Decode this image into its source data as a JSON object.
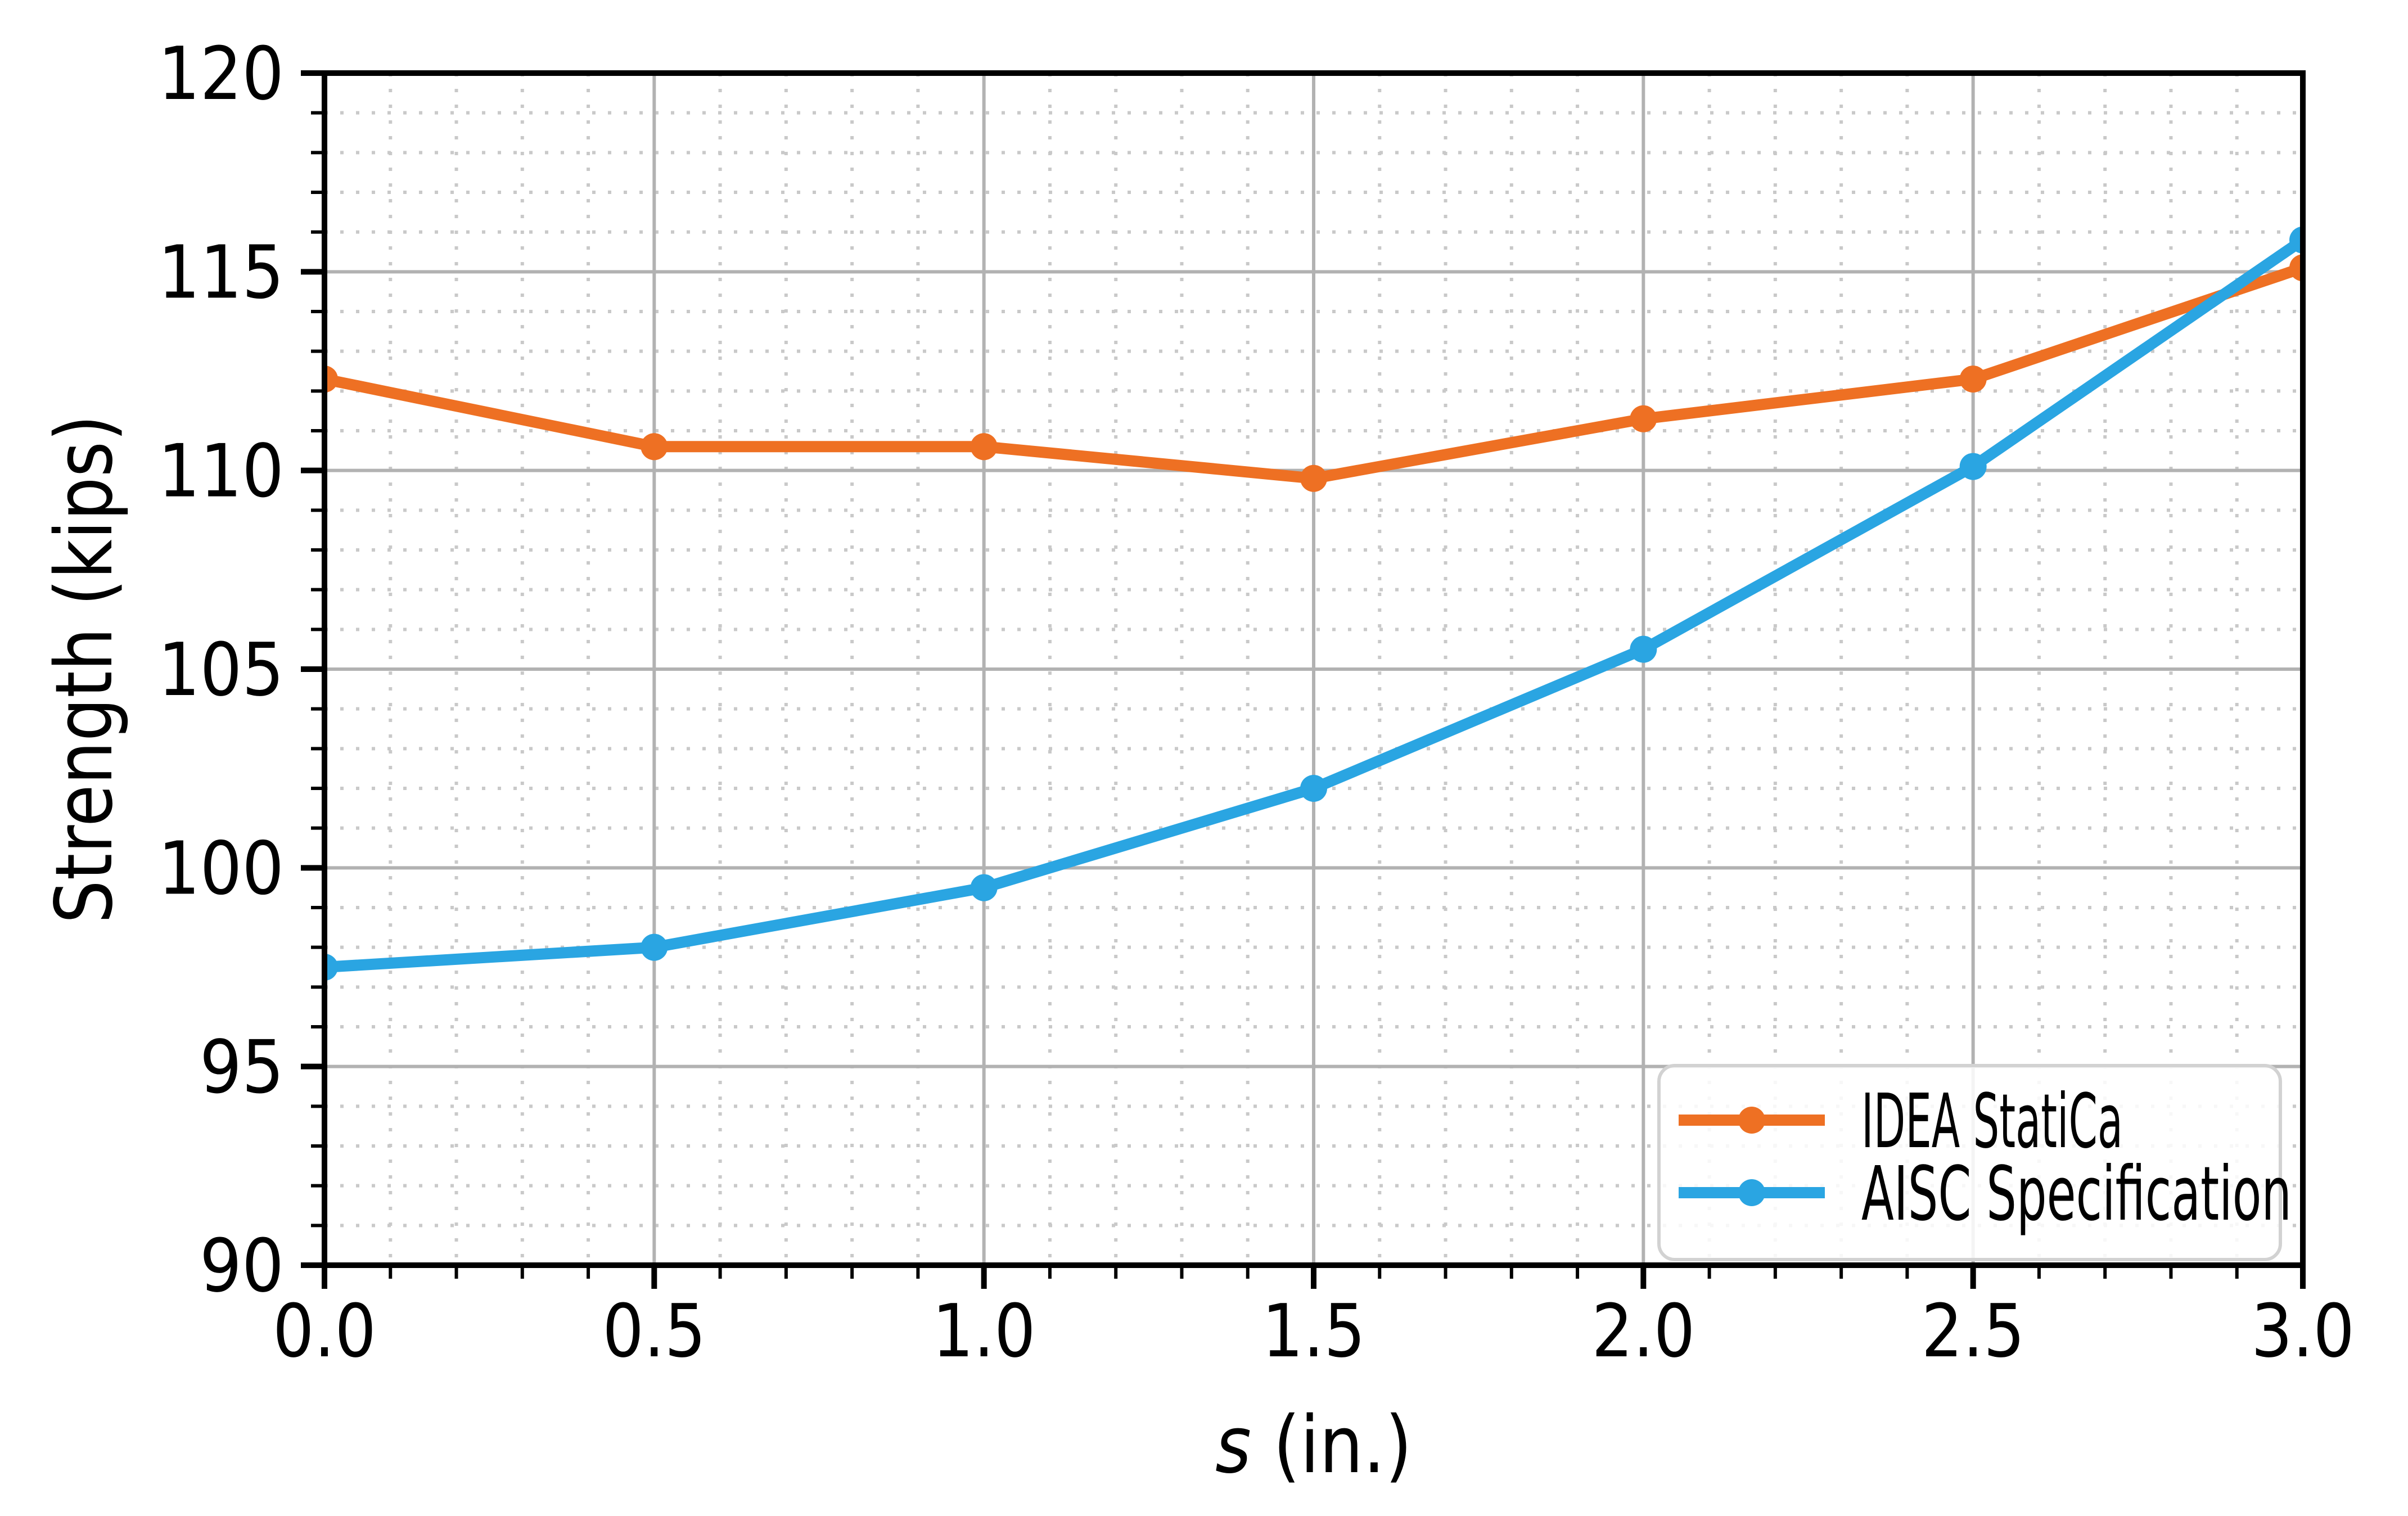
{
  "figure": {
    "background": "#ffffff"
  },
  "chart_data": {
    "type": "line",
    "title": "",
    "xlabel": {
      "variable": "s",
      "unit": " (in.)"
    },
    "ylabel": "Strength (kips)",
    "x": [
      0.0,
      0.5,
      1.0,
      1.5,
      2.0,
      2.5,
      3.0
    ],
    "series": [
      {
        "name": "IDEA StatiCa",
        "color": "#ee7023",
        "marker": "circle",
        "values": [
          112.3,
          110.6,
          110.6,
          109.8,
          111.3,
          112.3,
          115.1
        ]
      },
      {
        "name": "AISC Specification",
        "color": "#2aa5e2",
        "marker": "circle",
        "values": [
          97.5,
          98.0,
          99.5,
          102.0,
          105.5,
          110.1,
          115.8
        ]
      }
    ],
    "xlim": [
      0.0,
      3.0
    ],
    "ylim": [
      90,
      120
    ],
    "x_tick_labels": [
      "0.0",
      "0.5",
      "1.0",
      "1.5",
      "2.0",
      "2.5",
      "3.0"
    ],
    "y_ticks": [
      90,
      95,
      100,
      105,
      110,
      115,
      120
    ],
    "y_tick_labels": [
      "90",
      "95",
      "100",
      "105",
      "110",
      "115",
      "120"
    ],
    "x_minor_step": 0.1,
    "y_minor_step": 1,
    "grid": {
      "major": true,
      "minor": true,
      "major_color": "#b2b2b2",
      "minor_color": "#c9c9c9",
      "minor_style": "dotted"
    },
    "legend": {
      "position": "lower right",
      "entries": [
        "IDEA StatiCa",
        "AISC Specification"
      ]
    }
  }
}
